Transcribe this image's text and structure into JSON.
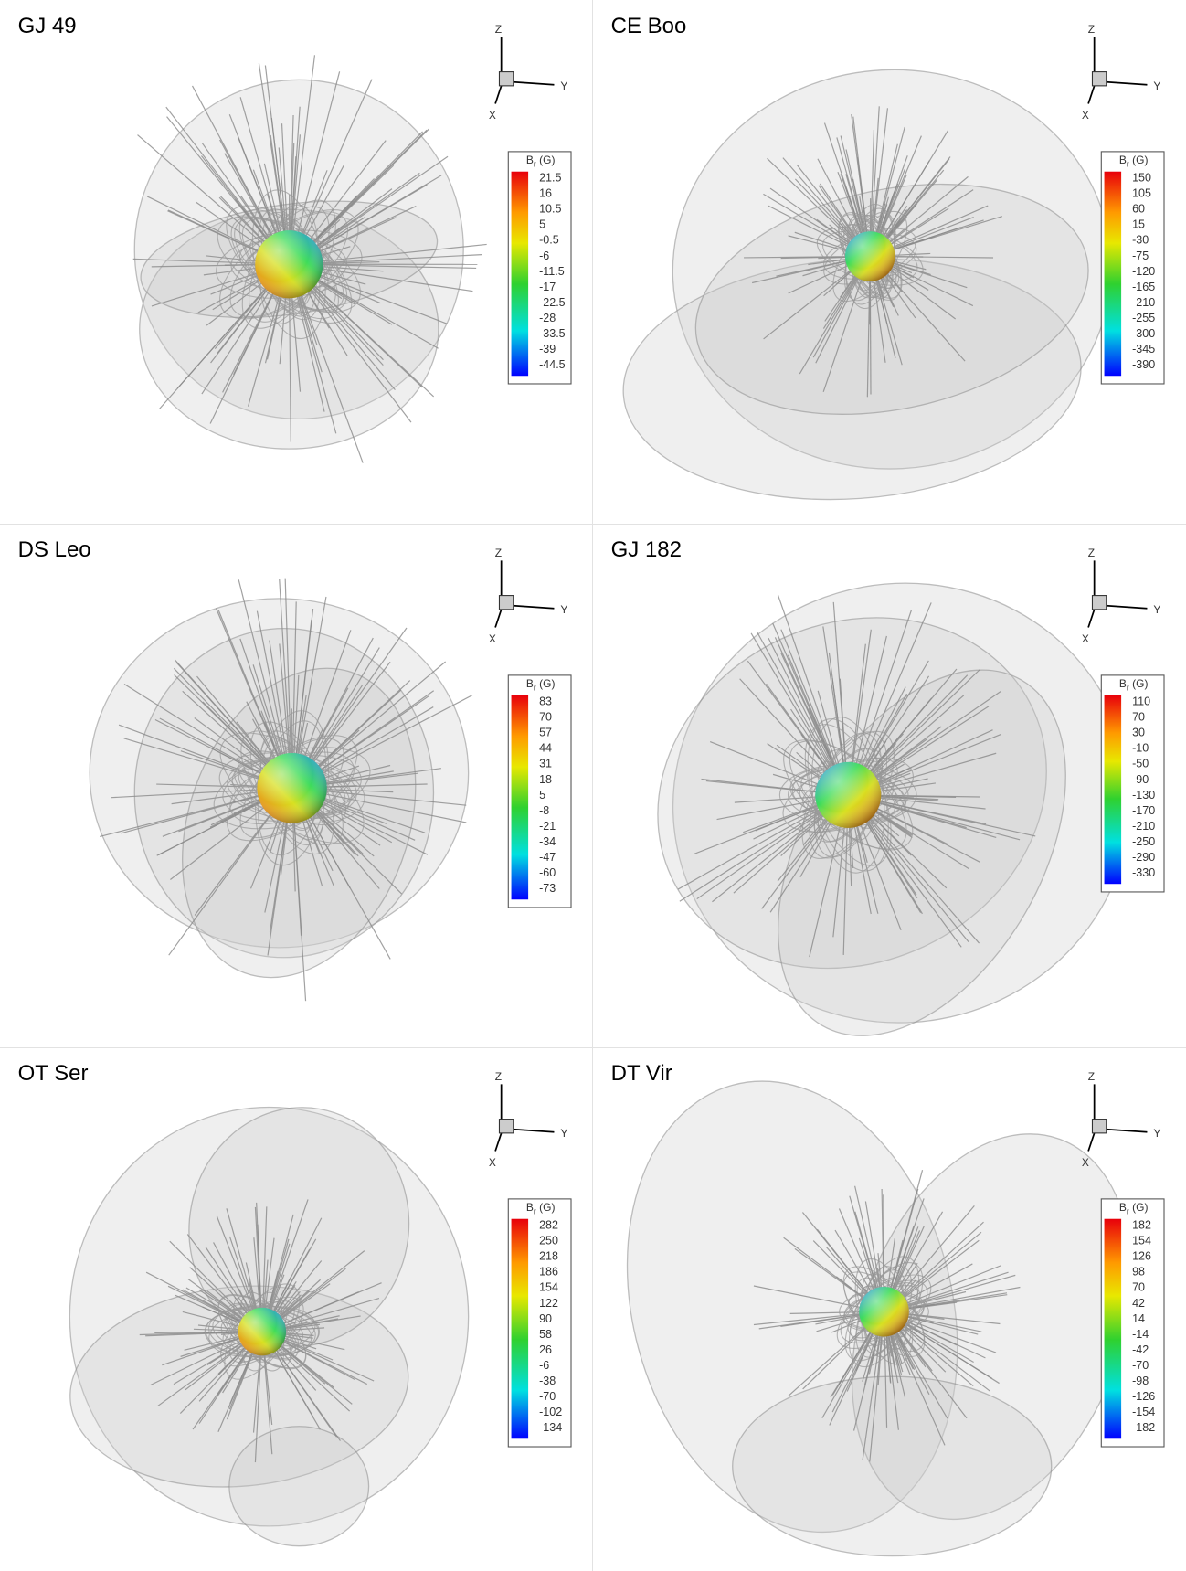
{
  "panels": [
    {
      "title": "GJ 49",
      "axes": {
        "z": "Z",
        "y": "Y",
        "x": "X"
      },
      "colorbar": {
        "label": "B",
        "subscript": "r",
        "unit": "(G)",
        "ticks": [
          21.5,
          16,
          10.5,
          5,
          -0.5,
          -6,
          -11.5,
          -17,
          -22.5,
          -28,
          -33.5,
          -39,
          -44.5
        ]
      }
    },
    {
      "title": "CE Boo",
      "axes": {
        "z": "Z",
        "y": "Y",
        "x": "X"
      },
      "colorbar": {
        "label": "B",
        "subscript": "r",
        "unit": "(G)",
        "ticks": [
          150,
          105,
          60,
          15,
          -30,
          -75,
          -120,
          -165,
          -210,
          -255,
          -300,
          -345,
          -390
        ]
      }
    },
    {
      "title": "DS Leo",
      "axes": {
        "z": "Z",
        "y": "Y",
        "x": "X"
      },
      "colorbar": {
        "label": "B",
        "subscript": "r",
        "unit": "(G)",
        "ticks": [
          83,
          70,
          57,
          44,
          31,
          18,
          5,
          -8,
          -21,
          -34,
          -47,
          -60,
          -73
        ]
      }
    },
    {
      "title": "GJ 182",
      "axes": {
        "z": "Z",
        "y": "Y",
        "x": "X"
      },
      "colorbar": {
        "label": "B",
        "subscript": "r",
        "unit": "(G)",
        "ticks": [
          110,
          70,
          30,
          -10,
          -50,
          -90,
          -130,
          -170,
          -210,
          -250,
          -290,
          -330
        ]
      }
    },
    {
      "title": "OT Ser",
      "axes": {
        "z": "Z",
        "y": "Y",
        "x": "X"
      },
      "colorbar": {
        "label": "B",
        "subscript": "r",
        "unit": "(G)",
        "ticks": [
          282,
          250,
          218,
          186,
          154,
          122,
          90,
          58,
          26,
          -6,
          -38,
          -70,
          -102,
          -134
        ]
      }
    },
    {
      "title": "DT Vir",
      "axes": {
        "z": "Z",
        "y": "Y",
        "x": "X"
      },
      "colorbar": {
        "label": "B",
        "subscript": "r",
        "unit": "(G)",
        "ticks": [
          182,
          154,
          126,
          98,
          70,
          42,
          14,
          -14,
          -42,
          -70,
          -98,
          -126,
          -154,
          -182
        ]
      }
    }
  ]
}
